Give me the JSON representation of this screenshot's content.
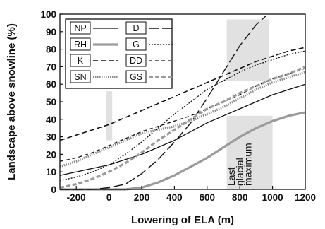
{
  "chart_data": {
    "type": "line",
    "xlabel": "Lowering of ELA (m)",
    "ylabel": "Landscape above snowline (%)",
    "xlim": [
      -300,
      1200
    ],
    "ylim": [
      0,
      100
    ],
    "x_ticks": [
      -200,
      0,
      200,
      400,
      600,
      800,
      1000,
      1200
    ],
    "y_ticks": [
      0,
      10,
      20,
      30,
      40,
      50,
      60,
      70,
      80,
      90,
      100
    ],
    "legend_position": "top-left",
    "grid": false,
    "annotation": [
      "Last",
      "glacial",
      "maximum"
    ],
    "shaded_bands": [
      {
        "x_range": [
          -20,
          20
        ],
        "y_range": [
          28,
          56
        ]
      },
      {
        "x_range": [
          720,
          1000
        ],
        "y_range": [
          0,
          42
        ]
      },
      {
        "x_range": [
          720,
          980
        ],
        "y_range": [
          62,
          97
        ]
      }
    ],
    "series": [
      {
        "name": "NP",
        "color": "#111111",
        "dash": "solid",
        "width": 1.3,
        "x": [
          -300,
          -200,
          -100,
          0,
          100,
          200,
          300,
          400,
          500,
          600,
          700,
          800,
          900,
          1000,
          1100,
          1200
        ],
        "y": [
          8,
          10,
          12,
          14,
          17,
          20,
          24,
          28,
          33,
          38,
          42,
          46,
          50,
          54,
          57,
          60
        ]
      },
      {
        "name": "RH",
        "color": "#9a9a9a",
        "dash": "solid",
        "width": 3.2,
        "x": [
          -300,
          -200,
          -100,
          0,
          100,
          200,
          300,
          400,
          500,
          600,
          700,
          800,
          900,
          1000,
          1100,
          1200
        ],
        "y": [
          0,
          0,
          0,
          0,
          0,
          1,
          4,
          8,
          13,
          18,
          24,
          30,
          35,
          39,
          42,
          44
        ]
      },
      {
        "name": "K",
        "color": "#111111",
        "dash": "7,4",
        "width": 1.6,
        "x": [
          -300,
          -200,
          -100,
          0,
          100,
          200,
          300,
          400,
          500,
          600,
          700,
          800,
          900,
          1000,
          1100,
          1200
        ],
        "y": [
          28,
          31,
          34,
          37,
          41,
          45,
          49,
          53,
          57,
          61,
          65,
          69,
          73,
          76,
          79,
          81
        ]
      },
      {
        "name": "SN",
        "color": "#8a8a8a",
        "dash": "1.5,1.5",
        "width": 3.2,
        "x": [
          -300,
          -200,
          -100,
          0,
          100,
          200,
          300,
          400,
          500,
          600,
          700,
          800,
          900,
          1000,
          1100,
          1200
        ],
        "y": [
          13,
          16,
          20,
          24,
          28,
          32,
          34,
          36,
          39,
          43,
          47,
          52,
          57,
          61,
          64,
          67
        ]
      },
      {
        "name": "D",
        "color": "#111111",
        "dash": "14,5",
        "width": 1.4,
        "x": [
          -300,
          -200,
          -100,
          0,
          100,
          200,
          300,
          400,
          500,
          600,
          700,
          800,
          900,
          960
        ],
        "y": [
          0,
          0,
          0,
          1,
          3,
          9,
          17,
          27,
          38,
          52,
          67,
          82,
          94,
          99
        ]
      },
      {
        "name": "G",
        "color": "#111111",
        "dash": "2,2",
        "width": 1.3,
        "x": [
          -300,
          -200,
          -100,
          0,
          100,
          200,
          300,
          400,
          500,
          600,
          700,
          800,
          900,
          1000,
          1100,
          1200
        ],
        "y": [
          5,
          7,
          10,
          14,
          20,
          27,
          35,
          43,
          50,
          57,
          62,
          67,
          71,
          74,
          77,
          79
        ]
      },
      {
        "name": "DD",
        "color": "#111111",
        "dash": "5,4",
        "width": 1.3,
        "x": [
          -300,
          -200,
          -100,
          0,
          100,
          200,
          300,
          400,
          500,
          600,
          700,
          800,
          900,
          1000,
          1100,
          1200
        ],
        "y": [
          16,
          18,
          21,
          25,
          29,
          33,
          36,
          39,
          42,
          46,
          50,
          54,
          59,
          63,
          66,
          69
        ]
      },
      {
        "name": "GS",
        "color": "#9a9a9a",
        "dash": "6,3",
        "width": 3.2,
        "x": [
          -300,
          -200,
          -100,
          0,
          100,
          200,
          300,
          400,
          500,
          600,
          700,
          800,
          900,
          1000,
          1100,
          1200
        ],
        "y": [
          1,
          3,
          6,
          10,
          15,
          21,
          28,
          34,
          40,
          46,
          50,
          55,
          59,
          63,
          66,
          70
        ]
      }
    ]
  }
}
